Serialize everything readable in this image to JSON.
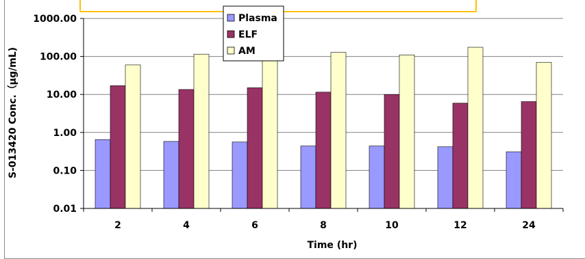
{
  "chart_data": {
    "type": "bar",
    "categories": [
      "2",
      "4",
      "6",
      "8",
      "10",
      "12",
      "24"
    ],
    "series": [
      {
        "name": "Plasma",
        "color": "#9999ff",
        "values": [
          0.65,
          0.58,
          0.56,
          0.44,
          0.44,
          0.42,
          0.31
        ]
      },
      {
        "name": "ELF",
        "color": "#993366",
        "values": [
          17,
          13.5,
          15,
          11.5,
          10,
          5.9,
          6.5
        ]
      },
      {
        "name": "AM",
        "color": "#ffffcc",
        "values": [
          60,
          115,
          78,
          128,
          110,
          175,
          70
        ]
      }
    ],
    "xlabel": "Time (hr)",
    "ylabel": "S-013420 Conc.（μg/mL)",
    "yscale": "log",
    "ylim": [
      0.01,
      1000
    ],
    "yticks": [
      "0.01",
      "0.10",
      "1.00",
      "10.00",
      "100.00",
      "1000.00"
    ],
    "grid": true,
    "legend_position": "top-center"
  }
}
